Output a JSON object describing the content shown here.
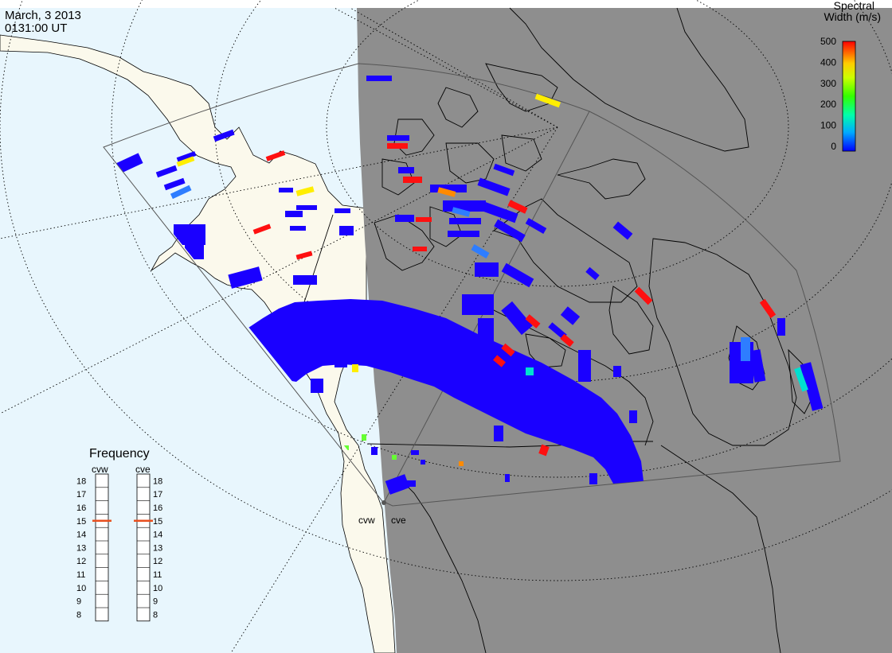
{
  "header": {
    "date": "March, 3 2013",
    "time": "0131:00 UT"
  },
  "legend": {
    "title_line1": "Spectral",
    "title_line2": "Width (m/s)",
    "ticks": [
      "500",
      "400",
      "300",
      "200",
      "100",
      "0"
    ],
    "range": [
      0,
      500
    ],
    "colors": [
      "#0000ff",
      "#00ccff",
      "#00ff66",
      "#66ff00",
      "#ffff00",
      "#ffaa00",
      "#ff0000"
    ]
  },
  "frequency_panel": {
    "title": "Frequency",
    "radars": [
      {
        "code": "cvw",
        "selected_mhz": 15
      },
      {
        "code": "cve",
        "selected_mhz": 15
      }
    ],
    "scale": [
      "18",
      "17",
      "16",
      "15",
      "14",
      "13",
      "12",
      "11",
      "10",
      "9",
      "8"
    ],
    "marker_color": "#e8501f"
  },
  "radar_sites": [
    {
      "code": "cvw"
    },
    {
      "code": "cve"
    }
  ],
  "colors": {
    "ocean_day": "#e8f6fd",
    "land_day": "#fbf9ec",
    "night_shade": "#8e8e8e",
    "coast": "#000000",
    "grid": "#000000"
  }
}
